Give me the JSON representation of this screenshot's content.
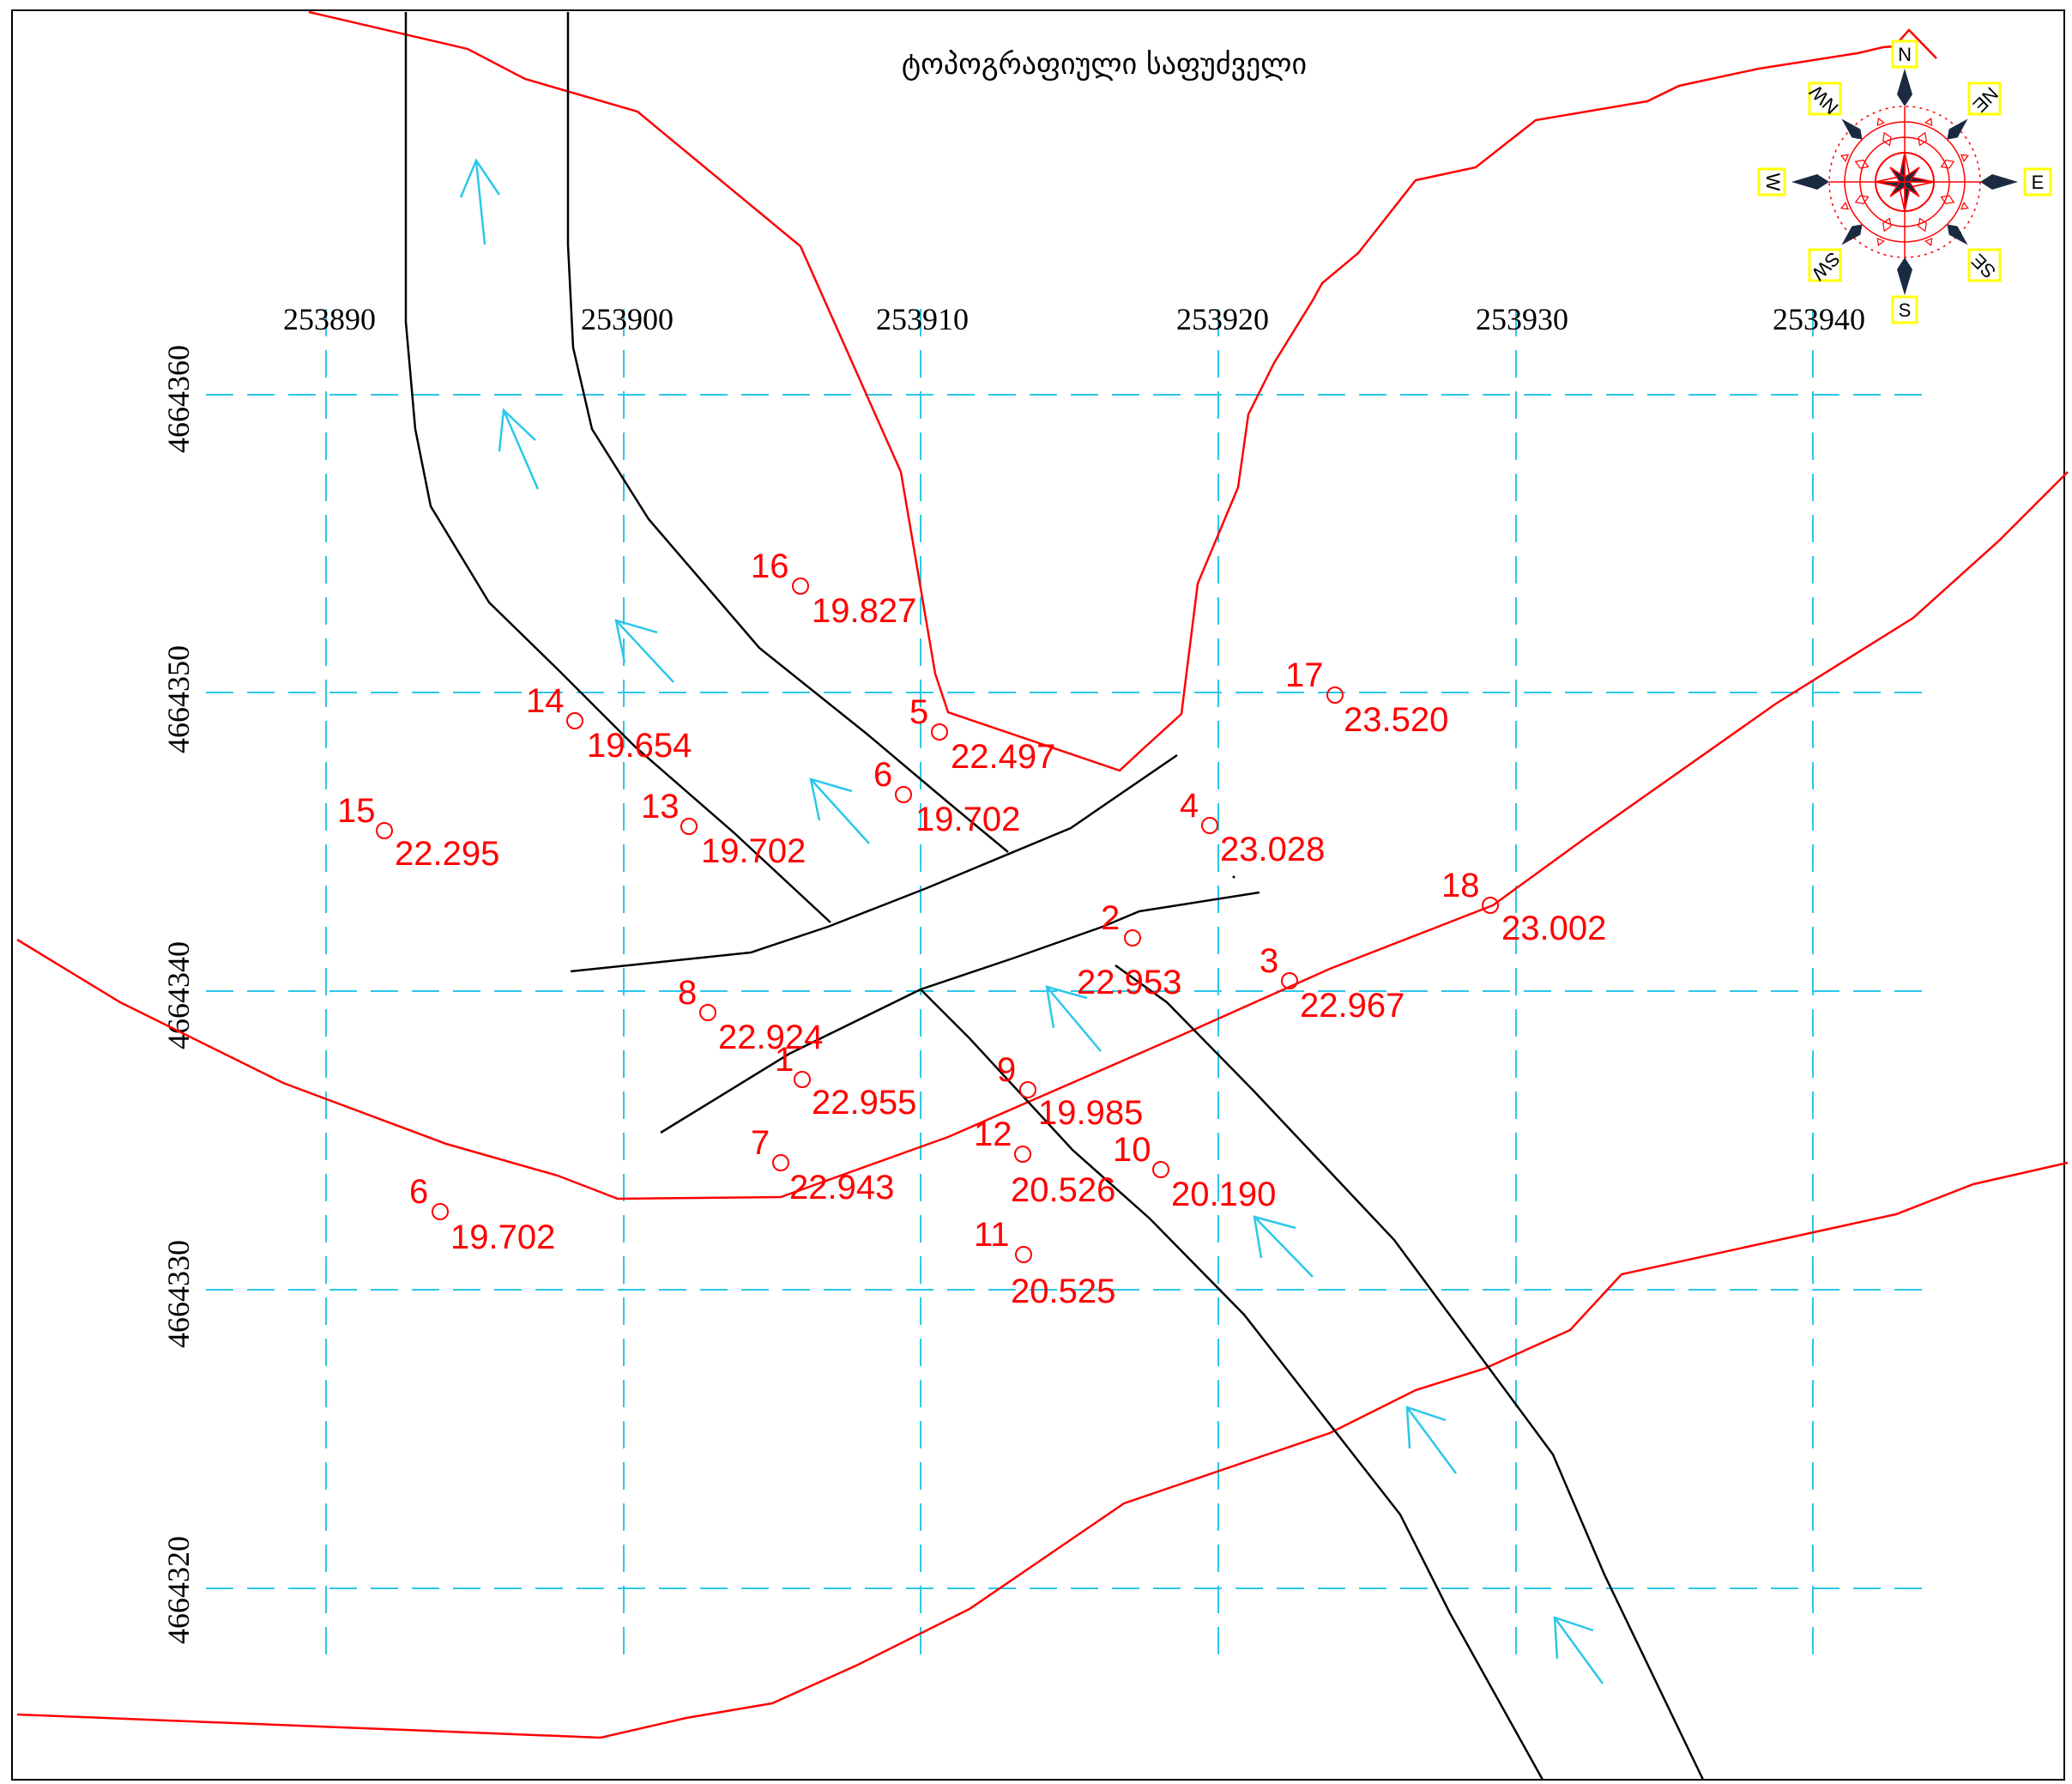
{
  "title": "ტოპოგრაფიული საფუძველი",
  "colors": {
    "grid": "#2bc8e8",
    "contour": "#ff0000",
    "road": "#000000",
    "flow_arrow": "#2bc8e8",
    "points": "#ff0000",
    "compass_box": "#ffff00",
    "compass_point": "#1a2a40"
  },
  "axes": {
    "x_ticks": [
      "253890",
      "253900",
      "253910",
      "253920",
      "253930",
      "253940"
    ],
    "y_ticks": [
      "4664360",
      "4664350",
      "4664340",
      "4664330",
      "4664320"
    ]
  },
  "compass": {
    "labels": [
      "N",
      "NE",
      "E",
      "SE",
      "S",
      "SW",
      "W",
      "NW"
    ],
    "icon": "compass-rose-icon"
  },
  "points": [
    {
      "id": "16",
      "elev": "19.827"
    },
    {
      "id": "17",
      "elev": "23.520"
    },
    {
      "id": "14",
      "elev": "19.654"
    },
    {
      "id": "5",
      "elev": "22.497"
    },
    {
      "id": "15",
      "elev": "22.295"
    },
    {
      "id": "13",
      "elev": "19.702"
    },
    {
      "id": "6",
      "elev": "19.702"
    },
    {
      "id": "4",
      "elev": "23.028"
    },
    {
      "id": "18",
      "elev": "23.002"
    },
    {
      "id": "2",
      "elev": "22.953"
    },
    {
      "id": "3",
      "elev": "22.967"
    },
    {
      "id": "8",
      "elev": "22.924"
    },
    {
      "id": "1",
      "elev": "22.955"
    },
    {
      "id": "9",
      "elev": "19.985"
    },
    {
      "id": "12",
      "elev": "20.526"
    },
    {
      "id": "10",
      "elev": "20.190"
    },
    {
      "id": "7",
      "elev": "22.943"
    },
    {
      "id": "6",
      "elev": "19.702"
    },
    {
      "id": "11",
      "elev": "20.525"
    }
  ]
}
